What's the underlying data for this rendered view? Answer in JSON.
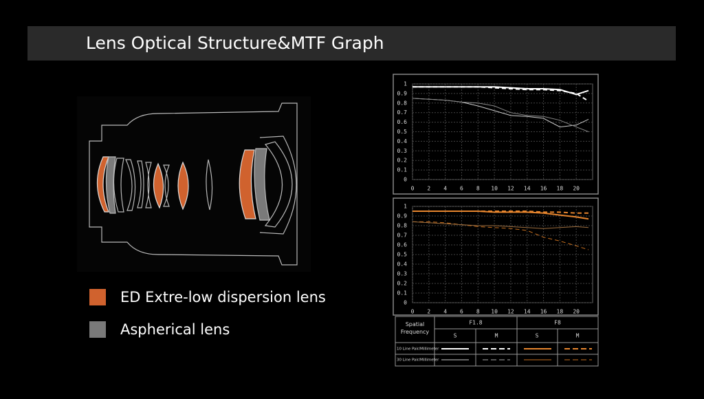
{
  "header": {
    "title": "Lens Optical Structure&MTF Graph"
  },
  "legend": [
    {
      "label": "ED Extre-low dispersion lens",
      "color": "#d0622e"
    },
    {
      "label": "Aspherical lens",
      "color": "#7a7a7a"
    }
  ],
  "chart_data": [
    {
      "type": "line",
      "x": [
        0,
        2,
        4,
        6,
        8,
        10,
        12,
        14,
        16,
        18,
        20,
        21.5
      ],
      "xlim": [
        0,
        22
      ],
      "xticks": [
        0,
        2,
        4,
        6,
        8,
        10,
        12,
        14,
        16,
        18,
        20
      ],
      "ylim": [
        0,
        1
      ],
      "yticks": [
        0,
        0.1,
        0.2,
        0.3,
        0.4,
        0.5,
        0.6,
        0.7,
        0.8,
        0.9,
        1
      ],
      "grid": true,
      "series": [
        {
          "color": "#ffffff",
          "width": 2,
          "dash": false,
          "values": [
            0.97,
            0.97,
            0.97,
            0.97,
            0.97,
            0.97,
            0.96,
            0.95,
            0.95,
            0.94,
            0.89,
            0.93
          ]
        },
        {
          "color": "#ffffff",
          "width": 2,
          "dash": true,
          "values": [
            0.97,
            0.97,
            0.97,
            0.97,
            0.97,
            0.96,
            0.95,
            0.94,
            0.94,
            0.93,
            0.9,
            0.82
          ]
        },
        {
          "color": "#cccccc",
          "width": 1,
          "dash": false,
          "values": [
            0.85,
            0.84,
            0.83,
            0.81,
            0.77,
            0.72,
            0.67,
            0.66,
            0.64,
            0.55,
            0.57,
            0.63
          ]
        },
        {
          "color": "#888888",
          "width": 1,
          "dash": false,
          "values": [
            0.85,
            0.84,
            0.83,
            0.81,
            0.8,
            0.77,
            0.7,
            0.67,
            0.66,
            0.62,
            0.55,
            0.5
          ]
        }
      ]
    },
    {
      "type": "line",
      "x": [
        0,
        2,
        4,
        6,
        8,
        10,
        12,
        14,
        16,
        18,
        20,
        21.5
      ],
      "xlim": [
        0,
        22
      ],
      "xticks": [
        0,
        2,
        4,
        6,
        8,
        10,
        12,
        14,
        16,
        18,
        20
      ],
      "ylim": [
        0,
        1
      ],
      "yticks": [
        0,
        0.1,
        0.2,
        0.3,
        0.4,
        0.5,
        0.6,
        0.7,
        0.8,
        0.9,
        1
      ],
      "grid": true,
      "series": [
        {
          "color": "#e8862e",
          "width": 2,
          "dash": false,
          "values": [
            0.95,
            0.95,
            0.95,
            0.95,
            0.95,
            0.94,
            0.94,
            0.94,
            0.93,
            0.91,
            0.89,
            0.87
          ]
        },
        {
          "color": "#e8862e",
          "width": 2,
          "dash": true,
          "values": [
            0.95,
            0.95,
            0.95,
            0.95,
            0.95,
            0.95,
            0.95,
            0.95,
            0.94,
            0.94,
            0.93,
            0.93
          ]
        },
        {
          "color": "#c9701f",
          "width": 1,
          "dash": true,
          "values": [
            0.84,
            0.84,
            0.83,
            0.81,
            0.79,
            0.78,
            0.77,
            0.75,
            0.68,
            0.64,
            0.59,
            0.55
          ]
        },
        {
          "color": "#a07040",
          "width": 1,
          "dash": false,
          "values": [
            0.84,
            0.83,
            0.82,
            0.81,
            0.8,
            0.8,
            0.79,
            0.78,
            0.77,
            0.78,
            0.79,
            0.78
          ]
        }
      ]
    }
  ],
  "table": {
    "corner": "Spatial Frequency",
    "groups": [
      "F1.8",
      "F8"
    ],
    "subheads": [
      "S",
      "M",
      "S",
      "M"
    ],
    "rows": [
      "10 Line Pair/Millimeter",
      "30 Line Pair/Millimeter"
    ]
  }
}
